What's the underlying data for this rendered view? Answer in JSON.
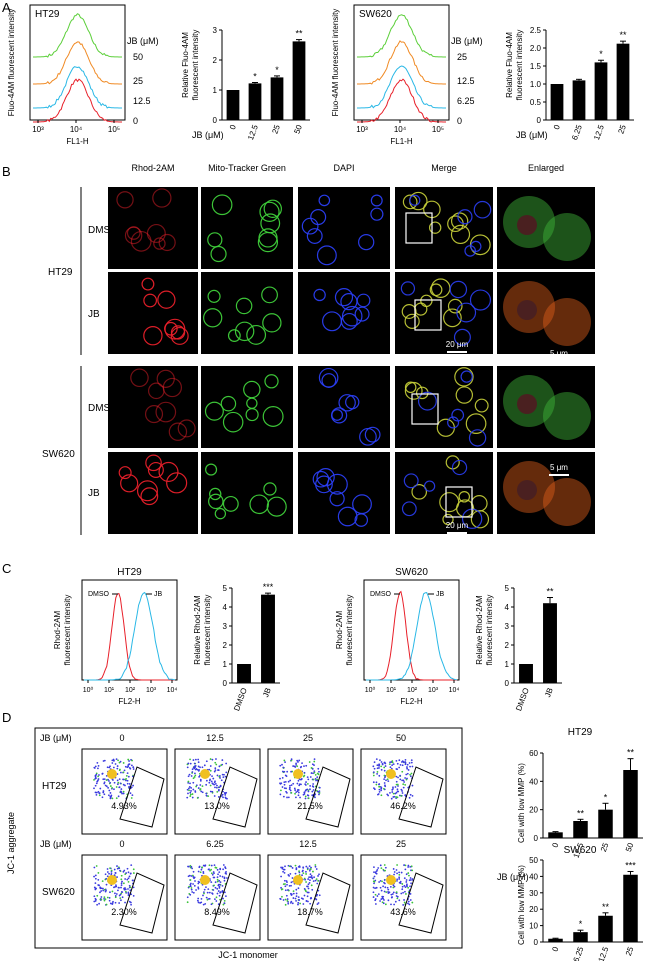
{
  "panel_labels": {
    "a": "A",
    "b": "B",
    "c": "C",
    "d": "D"
  },
  "colors": {
    "red": "#e8202a",
    "orange": "#f08a24",
    "cyan": "#2ab8e6",
    "green": "#5ccf3a",
    "black": "#000000"
  },
  "panel_a": {
    "ht29": {
      "title": "HT29",
      "hist_ylabel": "Fluo-4AM fluorescent intensity",
      "hist_xlabel": "FL1-H",
      "hist_ticks": [
        "10³",
        "10⁴",
        "10⁵"
      ],
      "jb_header": "JB (μM)",
      "jb_labels": [
        "50",
        "25",
        "12.5",
        "0"
      ],
      "hist_colors": [
        "#5ccf3a",
        "#f08a24",
        "#2ab8e6",
        "#e8202a"
      ],
      "bar_ylabel": [
        "Relative Fluo-4AM",
        "fluorescent intensity"
      ],
      "bar_xlabel": "JB (μM)"
    },
    "sw620": {
      "title": "SW620",
      "hist_ylabel": "Fluo-4AM fluorescent intensity",
      "hist_xlabel": "FL1-H",
      "hist_ticks": [
        "10³",
        "10⁴",
        "10⁵"
      ],
      "jb_header": "JB (μM)",
      "jb_labels": [
        "25",
        "12.5",
        "6.25",
        "0"
      ],
      "hist_colors": [
        "#5ccf3a",
        "#f08a24",
        "#2ab8e6",
        "#e8202a"
      ],
      "bar_ylabel": [
        "Relative Fluo-4AM",
        "fluorescent intensity"
      ],
      "bar_xlabel": "JB (μM)"
    }
  },
  "panel_b": {
    "columns": [
      "Rhod-2AM",
      "Mito-Tracker Green",
      "DAPI",
      "Merge",
      "Enlarged"
    ],
    "cell_lines": [
      "HT29",
      "SW620"
    ],
    "rows": [
      "DMSO",
      "JB",
      "DMSO",
      "JB"
    ],
    "scale_20": "20 μm",
    "scale_5": "5 μm"
  },
  "panel_c": {
    "ht29": {
      "title": "HT29",
      "hist_ylabel": [
        "Rhod-2AM",
        "fluorescent intensity"
      ],
      "hist_xlabel": "FL2-H",
      "hist_ticks": [
        "10⁰",
        "10¹",
        "10²",
        "10³",
        "10⁴"
      ],
      "legend": [
        "DMSO",
        "JB"
      ],
      "bar_ylabel": [
        "Relative Rhod-2AM",
        "fluorescent intensity"
      ]
    },
    "sw620": {
      "title": "SW620",
      "hist_ylabel": [
        "Rhod-2AM",
        "fluorescent intensity"
      ],
      "hist_xlabel": "FL2-H",
      "hist_ticks": [
        "10⁰",
        "10¹",
        "10²",
        "10³",
        "10⁴"
      ],
      "legend": [
        "DMSO",
        "JB"
      ],
      "bar_ylabel": [
        "Relative Rhod-2AM",
        "fluorescent intensity"
      ]
    }
  },
  "panel_d": {
    "jb_label": "JB (μM)",
    "row_labels": [
      "HT29",
      "SW620"
    ],
    "ht29_doses": [
      "0",
      "12.5",
      "25",
      "50"
    ],
    "sw620_doses": [
      "0",
      "6.25",
      "12.5",
      "25"
    ],
    "ht29_pct": [
      "4.93%",
      "13.0%",
      "21.5%",
      "46.2%"
    ],
    "sw620_pct": [
      "2.30%",
      "8.49%",
      "18.7%",
      "43.6%"
    ],
    "ylabel": "JC-1 aggregate",
    "xlabel": "JC-1 monomer",
    "bar_ylabel": "Cell with low MMP (%)"
  },
  "chart_data": [
    {
      "type": "bar",
      "title": "HT29",
      "categories": [
        "0",
        "12.5",
        "25",
        "50"
      ],
      "values": [
        1.0,
        1.22,
        1.42,
        2.62
      ],
      "errors": [
        0.0,
        0.03,
        0.05,
        0.06
      ],
      "significance": [
        "",
        "*",
        "*",
        "**"
      ],
      "xlabel": "JB (μM)",
      "ylabel": "Relative Fluo-4AM fluorescent intensity",
      "ylim": [
        0,
        3
      ],
      "yticks": [
        "0",
        "1",
        "2",
        "3"
      ]
    },
    {
      "type": "bar",
      "title": "SW620",
      "categories": [
        "0",
        "6.25",
        "12.5",
        "25"
      ],
      "values": [
        1.0,
        1.1,
        1.6,
        2.12
      ],
      "errors": [
        0.0,
        0.03,
        0.06,
        0.07
      ],
      "significance": [
        "",
        "",
        "*",
        "**"
      ],
      "xlabel": "JB (μM)",
      "ylabel": "Relative Fluo-4AM fluorescent intensity",
      "ylim": [
        0,
        2.5
      ],
      "yticks": [
        "0",
        "0.5",
        "1.0",
        "1.5",
        "2.0",
        "2.5"
      ]
    },
    {
      "type": "bar",
      "title": "HT29",
      "categories": [
        "DMSO",
        "JB"
      ],
      "values": [
        1.0,
        4.65
      ],
      "errors": [
        0.0,
        0.08
      ],
      "significance": [
        "",
        "***"
      ],
      "ylabel": "Relative Rhod-2AM fluorescent intensity",
      "ylim": [
        0,
        5
      ],
      "yticks": [
        "0",
        "1",
        "2",
        "3",
        "4",
        "5"
      ]
    },
    {
      "type": "bar",
      "title": "SW620",
      "categories": [
        "DMSO",
        "JB"
      ],
      "values": [
        1.0,
        4.2
      ],
      "errors": [
        0.0,
        0.3
      ],
      "significance": [
        "",
        "**"
      ],
      "ylabel": "Relative Rhod-2AM fluorescent intensity",
      "ylim": [
        0,
        5
      ],
      "yticks": [
        "0",
        "1",
        "2",
        "3",
        "4",
        "5"
      ]
    },
    {
      "type": "bar",
      "title": "HT29",
      "categories": [
        "0",
        "12.5",
        "25",
        "50"
      ],
      "values": [
        4,
        12,
        20,
        48
      ],
      "errors": [
        0.5,
        1.2,
        4.5,
        8.0
      ],
      "significance": [
        "",
        "**",
        "*",
        "**"
      ],
      "xlabel": "JB (μM)",
      "ylabel": "Cell with low MMP (%)",
      "ylim": [
        0,
        60
      ],
      "yticks": [
        "0",
        "20",
        "40",
        "60"
      ]
    },
    {
      "type": "bar",
      "title": "SW620",
      "categories": [
        "0",
        "6.25",
        "12.5",
        "25"
      ],
      "values": [
        2,
        6,
        16,
        41
      ],
      "errors": [
        0.3,
        1.2,
        1.8,
        2.0
      ],
      "significance": [
        "",
        "*",
        "**",
        "***"
      ],
      "xlabel": "JB (μM)",
      "ylabel": "Cell with low MMP (%)",
      "ylim": [
        0,
        50
      ],
      "yticks": [
        "0",
        "10",
        "20",
        "30",
        "40",
        "50"
      ]
    }
  ]
}
